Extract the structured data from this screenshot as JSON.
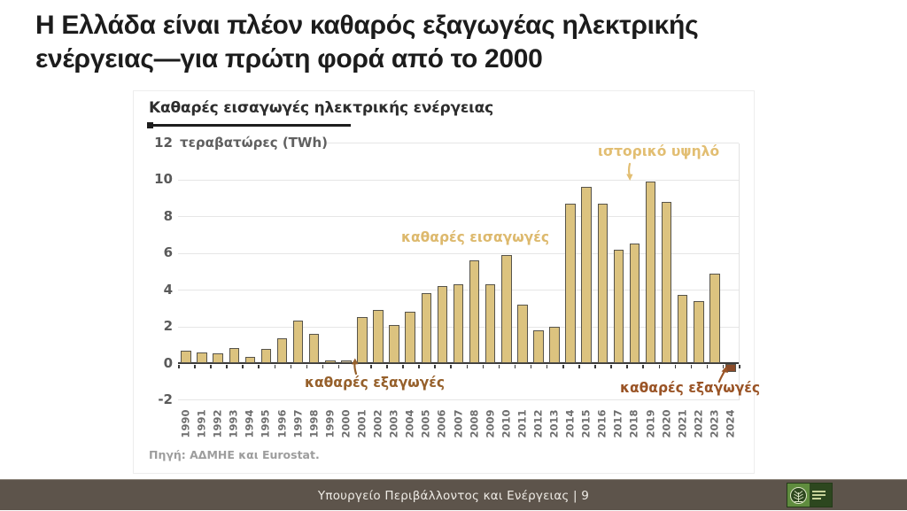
{
  "slide": {
    "title_line1": "Η Ελλάδα είναι πλέον καθαρός εξαγωγέας ηλεκτρικής",
    "title_line2": "ενέργειας—για πρώτη φορά από το 2000"
  },
  "chart_data": {
    "type": "bar",
    "title": "Καθαρές εισαγωγές ηλεκτρικής ενέργειας",
    "ylabel": "τεραβατώρες (TWh)",
    "ylim": [
      -2,
      12
    ],
    "yticks": [
      12,
      10,
      8,
      6,
      4,
      2,
      0,
      -2
    ],
    "grid": "horizontal",
    "legend": "none",
    "categories": [
      "1990",
      "1991",
      "1992",
      "1993",
      "1994",
      "1995",
      "1996",
      "1997",
      "1998",
      "1999",
      "2000",
      "2001",
      "2002",
      "2003",
      "2004",
      "2005",
      "2006",
      "2007",
      "2008",
      "2009",
      "2010",
      "2011",
      "2012",
      "2013",
      "2014",
      "2015",
      "2016",
      "2017",
      "2018",
      "2019",
      "2020",
      "2021",
      "2022",
      "2023",
      "2024"
    ],
    "values": [
      0.7,
      0.6,
      0.55,
      0.8,
      0.35,
      0.75,
      1.35,
      2.3,
      1.6,
      0.1,
      -0.05,
      2.5,
      2.9,
      2.1,
      2.8,
      3.8,
      4.2,
      4.3,
      5.6,
      4.3,
      5.9,
      3.2,
      1.8,
      2.0,
      8.7,
      9.6,
      8.7,
      6.2,
      6.5,
      9.9,
      8.8,
      3.7,
      3.4,
      4.9,
      -0.4
    ],
    "annotations": [
      {
        "text": "ιστορικό υψηλό",
        "points_to": "2019"
      },
      {
        "text": "καθαρές εισαγωγές",
        "points_to": "positive-bars"
      },
      {
        "text": "καθαρές εξαγωγές",
        "points_to": "2000"
      },
      {
        "text": "καθαρές εξαγωγές",
        "points_to": "2024"
      }
    ],
    "colors": {
      "bar_fill": "#dcc37f",
      "bar_border": "#57544b",
      "annotation_gold": "#ddb96d",
      "annotation_brown": "#96602b",
      "annotation_brown_dark": "#9a5426"
    },
    "bar_color_overrides": {
      "2000": "#c9bda1",
      "2024": "#8a4a28"
    },
    "source": "Πηγή: ΑΔΜΗΕ και Eurostat."
  },
  "footer": {
    "text": "Υπουργείο Περιβάλλοντος και Ενέργειας | 9",
    "bg": "#5d544b"
  }
}
